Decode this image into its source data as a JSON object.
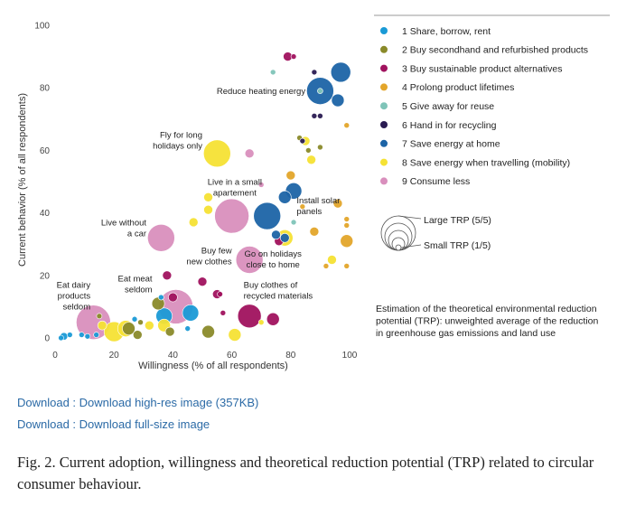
{
  "chart_data": {
    "type": "scatter",
    "title": "",
    "xlabel": "Willingness (% of all respondents)",
    "ylabel": "Current behavior (% of all respondents)",
    "xlim": [
      0,
      100
    ],
    "ylim": [
      0,
      100
    ],
    "xticks": [
      0,
      20,
      40,
      60,
      80,
      100
    ],
    "yticks": [
      0,
      20,
      40,
      60,
      80,
      100
    ],
    "grid": false,
    "legend_position": "right",
    "size_encoding": "TRP (1/5 to 5/5)",
    "categories": [
      {
        "id": 1,
        "name": "1 Share, borrow, rent",
        "color": "#1a9ad6"
      },
      {
        "id": 2,
        "name": "2 Buy secondhand and refurbished products",
        "color": "#8a8a2a"
      },
      {
        "id": 3,
        "name": "3 Buy sustainable product alternatives",
        "color": "#a0125e"
      },
      {
        "id": 4,
        "name": "4 Prolong product lifetimes",
        "color": "#e3a52a"
      },
      {
        "id": 5,
        "name": "5 Give away for reuse",
        "color": "#7fc4b8"
      },
      {
        "id": 6,
        "name": "6 Hand in for recycling",
        "color": "#2a1b52"
      },
      {
        "id": 7,
        "name": "7 Save energy at home",
        "color": "#1c64a6"
      },
      {
        "id": 8,
        "name": "8 Save energy when travelling (mobility)",
        "color": "#f5e234"
      },
      {
        "id": 9,
        "name": "9 Consume less",
        "color": "#d98fbd"
      }
    ],
    "points": [
      {
        "cat": 1,
        "x": 2,
        "y": 0,
        "trp": 1
      },
      {
        "cat": 1,
        "x": 3,
        "y": 0.5,
        "trp": 1.3
      },
      {
        "cat": 1,
        "x": 5,
        "y": 1,
        "trp": 1
      },
      {
        "cat": 1,
        "x": 9,
        "y": 1,
        "trp": 1
      },
      {
        "cat": 1,
        "x": 11,
        "y": 0.5,
        "trp": 1
      },
      {
        "cat": 1,
        "x": 14,
        "y": 1,
        "trp": 1
      },
      {
        "cat": 1,
        "x": 27,
        "y": 6,
        "trp": 1
      },
      {
        "cat": 1,
        "x": 36,
        "y": 13,
        "trp": 1
      },
      {
        "cat": 1,
        "x": 37,
        "y": 7,
        "trp": 2.5
      },
      {
        "cat": 1,
        "x": 46,
        "y": 8,
        "trp": 2.5
      },
      {
        "cat": 1,
        "x": 45,
        "y": 3,
        "trp": 1
      },
      {
        "cat": 2,
        "x": 15,
        "y": 7,
        "trp": 1
      },
      {
        "cat": 2,
        "x": 25,
        "y": 3,
        "trp": 2
      },
      {
        "cat": 2,
        "x": 28,
        "y": 1,
        "trp": 1.5
      },
      {
        "cat": 2,
        "x": 29,
        "y": 5,
        "trp": 1
      },
      {
        "cat": 2,
        "x": 35,
        "y": 11,
        "trp": 2
      },
      {
        "cat": 2,
        "x": 39,
        "y": 2,
        "trp": 1.5
      },
      {
        "cat": 2,
        "x": 52,
        "y": 2,
        "trp": 2
      },
      {
        "cat": 2,
        "x": 86,
        "y": 60,
        "trp": 1
      },
      {
        "cat": 2,
        "x": 90,
        "y": 61,
        "trp": 1
      },
      {
        "cat": 2,
        "x": 83,
        "y": 64,
        "trp": 1
      },
      {
        "cat": 3,
        "x": 38,
        "y": 20,
        "trp": 1.5
      },
      {
        "cat": 3,
        "x": 40,
        "y": 13,
        "trp": 1.5
      },
      {
        "cat": 3,
        "x": 50,
        "y": 18,
        "trp": 1.5
      },
      {
        "cat": 3,
        "x": 55,
        "y": 14,
        "trp": 1.5
      },
      {
        "cat": 3,
        "x": 56,
        "y": 14,
        "trp": 1
      },
      {
        "cat": 3,
        "x": 57,
        "y": 8,
        "trp": 1
      },
      {
        "cat": 3,
        "x": 66,
        "y": 7,
        "trp": 3.5
      },
      {
        "cat": 3,
        "x": 74,
        "y": 6,
        "trp": 2
      },
      {
        "cat": 3,
        "x": 76,
        "y": 31,
        "trp": 1.5
      },
      {
        "cat": 3,
        "x": 79,
        "y": 90,
        "trp": 1.5
      },
      {
        "cat": 3,
        "x": 81,
        "y": 90,
        "trp": 1
      },
      {
        "cat": 4,
        "x": 80,
        "y": 52,
        "trp": 1.5
      },
      {
        "cat": 4,
        "x": 84,
        "y": 42,
        "trp": 1
      },
      {
        "cat": 4,
        "x": 88,
        "y": 34,
        "trp": 1.5
      },
      {
        "cat": 4,
        "x": 96,
        "y": 43,
        "trp": 1.5
      },
      {
        "cat": 4,
        "x": 99,
        "y": 38,
        "trp": 1
      },
      {
        "cat": 4,
        "x": 99,
        "y": 36,
        "trp": 1
      },
      {
        "cat": 4,
        "x": 99,
        "y": 31,
        "trp": 2
      },
      {
        "cat": 4,
        "x": 99,
        "y": 23,
        "trp": 1
      },
      {
        "cat": 4,
        "x": 99,
        "y": 68,
        "trp": 1
      },
      {
        "cat": 4,
        "x": 92,
        "y": 23,
        "trp": 1
      },
      {
        "cat": 5,
        "x": 74,
        "y": 85,
        "trp": 1
      },
      {
        "cat": 5,
        "x": 81,
        "y": 37,
        "trp": 1
      },
      {
        "cat": 5,
        "x": 90,
        "y": 79,
        "trp": 1
      },
      {
        "cat": 6,
        "x": 88,
        "y": 85,
        "trp": 1
      },
      {
        "cat": 6,
        "x": 88,
        "y": 71,
        "trp": 1
      },
      {
        "cat": 6,
        "x": 90,
        "y": 71,
        "trp": 1
      },
      {
        "cat": 6,
        "x": 84,
        "y": 63,
        "trp": 1
      },
      {
        "cat": 7,
        "x": 97,
        "y": 85,
        "trp": 3
      },
      {
        "cat": 7,
        "x": 90,
        "y": 79,
        "trp": 4
      },
      {
        "cat": 7,
        "x": 96,
        "y": 76,
        "trp": 2
      },
      {
        "cat": 7,
        "x": 78,
        "y": 45,
        "trp": 2
      },
      {
        "cat": 7,
        "x": 81,
        "y": 47,
        "trp": 2.5
      },
      {
        "cat": 7,
        "x": 72,
        "y": 39,
        "trp": 4
      },
      {
        "cat": 7,
        "x": 75,
        "y": 33,
        "trp": 1.5
      },
      {
        "cat": 7,
        "x": 78,
        "y": 32,
        "trp": 1.5
      },
      {
        "cat": 8,
        "x": 16,
        "y": 4,
        "trp": 1.5
      },
      {
        "cat": 8,
        "x": 20,
        "y": 2,
        "trp": 3
      },
      {
        "cat": 8,
        "x": 24,
        "y": 3,
        "trp": 2.5
      },
      {
        "cat": 8,
        "x": 32,
        "y": 4,
        "trp": 1.5
      },
      {
        "cat": 8,
        "x": 37,
        "y": 4,
        "trp": 2
      },
      {
        "cat": 8,
        "x": 47,
        "y": 37,
        "trp": 1.5
      },
      {
        "cat": 8,
        "x": 52,
        "y": 41,
        "trp": 1.5
      },
      {
        "cat": 8,
        "x": 52,
        "y": 45,
        "trp": 1.5
      },
      {
        "cat": 8,
        "x": 55,
        "y": 59,
        "trp": 4
      },
      {
        "cat": 8,
        "x": 61,
        "y": 1,
        "trp": 2
      },
      {
        "cat": 8,
        "x": 70,
        "y": 5,
        "trp": 1
      },
      {
        "cat": 8,
        "x": 78,
        "y": 32,
        "trp": 2.5
      },
      {
        "cat": 8,
        "x": 85,
        "y": 63,
        "trp": 1.5
      },
      {
        "cat": 8,
        "x": 87,
        "y": 57,
        "trp": 1.5
      },
      {
        "cat": 8,
        "x": 94,
        "y": 25,
        "trp": 1.5
      },
      {
        "cat": 9,
        "x": 13,
        "y": 5,
        "trp": 5
      },
      {
        "cat": 9,
        "x": 41,
        "y": 10,
        "trp": 5
      },
      {
        "cat": 9,
        "x": 36,
        "y": 32,
        "trp": 4
      },
      {
        "cat": 9,
        "x": 60,
        "y": 39,
        "trp": 5
      },
      {
        "cat": 9,
        "x": 66,
        "y": 25,
        "trp": 4
      },
      {
        "cat": 9,
        "x": 66,
        "y": 59,
        "trp": 1.5
      },
      {
        "cat": 9,
        "x": 70,
        "y": 49,
        "trp": 1
      }
    ],
    "annotations": [
      {
        "lines": [
          "Reduce heating energy"
        ],
        "x": 85,
        "y": 78,
        "anchor": "end"
      },
      {
        "lines": [
          "Fly for long",
          "holidays only"
        ],
        "x": 50,
        "y": 64,
        "anchor": "end"
      },
      {
        "lines": [
          "Live in a small",
          "apartement"
        ],
        "x": 61,
        "y": 49,
        "anchor": "middle"
      },
      {
        "lines": [
          "Install solar",
          "panels"
        ],
        "x": 82,
        "y": 43,
        "anchor": "start"
      },
      {
        "lines": [
          "Live without",
          "a car"
        ],
        "x": 31,
        "y": 36,
        "anchor": "end"
      },
      {
        "lines": [
          "Buy few",
          "new clothes"
        ],
        "x": 60,
        "y": 27,
        "anchor": "end"
      },
      {
        "lines": [
          "Go on holidays",
          "close to home"
        ],
        "x": 74,
        "y": 26,
        "anchor": "middle"
      },
      {
        "lines": [
          "Eat meat",
          "seldom"
        ],
        "x": 33,
        "y": 18,
        "anchor": "end"
      },
      {
        "lines": [
          "Buy clothes of",
          "recycled materials"
        ],
        "x": 64,
        "y": 16,
        "anchor": "start"
      },
      {
        "lines": [
          "Eat dairy",
          "products",
          "seldom"
        ],
        "x": 12,
        "y": 16,
        "anchor": "end"
      }
    ],
    "size_legend": {
      "large": "Large TRP (5/5)",
      "small": "Small TRP (1/5)"
    },
    "note": [
      "Estimation of the theoretical environmental reduction",
      "potential (TRP): unweighted average of the reduction",
      "in greenhouse gas emissions and land use"
    ]
  },
  "links": {
    "high_res": "Download : Download high-res image (357KB)",
    "full_size": "Download : Download full-size image"
  },
  "caption": "Fig. 2. Current adoption, willingness and theoretical reduction potential (TRP) related to circular consumer behaviour."
}
